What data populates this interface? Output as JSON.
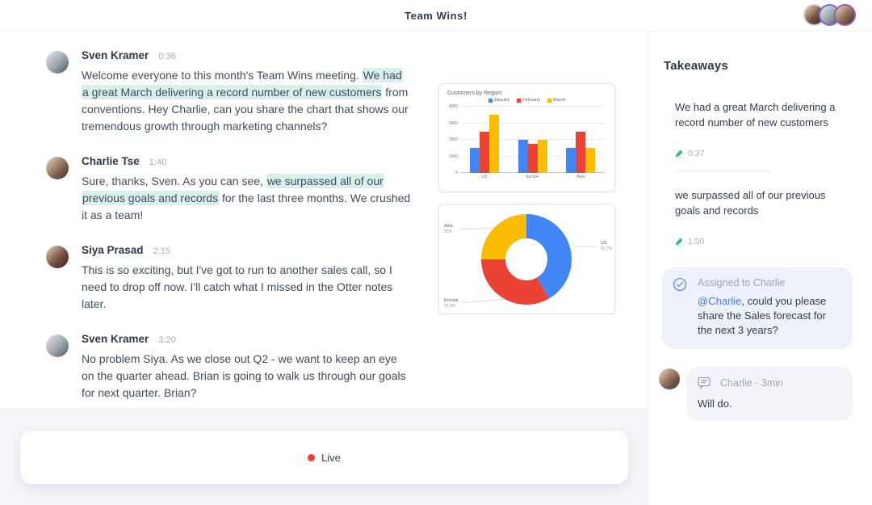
{
  "header": {
    "title": "Team Wins!",
    "participants": [
      "Siya Prasad",
      "Sven Kramer",
      "Charlie Tse"
    ]
  },
  "transcript": {
    "messages": [
      {
        "speaker": "Sven Kramer",
        "time": "0:36",
        "segments": [
          {
            "text": "Welcome everyone to this month's Team Wins meeting. ",
            "highlight": false
          },
          {
            "text": "We had a great March delivering a record number of new customers",
            "highlight": true
          },
          {
            "text": " from conventions. Hey Charlie, can you share the chart that shows our tremendous growth through marketing channels?",
            "highlight": false
          }
        ]
      },
      {
        "speaker": "Charlie Tse",
        "time": "1:40",
        "segments": [
          {
            "text": "Sure, thanks, Sven. As you can see, ",
            "highlight": false
          },
          {
            "text": "we surpassed all of our previous goals and records",
            "highlight": true
          },
          {
            "text": " for the last three months. We crushed it as a team!",
            "highlight": false
          }
        ]
      },
      {
        "speaker": "Siya Prasad",
        "time": "2:15",
        "segments": [
          {
            "text": "This is so exciting, but I've got to run to another sales call, so I need to drop off now. I'll catch what I missed in the Otter notes later.",
            "highlight": false
          }
        ]
      },
      {
        "speaker": "Sven Kramer",
        "time": "3:20",
        "segments": [
          {
            "text": "No problem Siya. As we close out Q2 - we want to keep an eye on the quarter ahead. Brian is going to walk us through our goals for next quarter. Brian?",
            "highlight": false
          }
        ]
      }
    ]
  },
  "chart_data": [
    {
      "type": "bar",
      "title": "Customers by Region",
      "categories": [
        "US",
        "Europe",
        "Asia"
      ],
      "series": [
        {
          "name": "January",
          "color": "#4285F4",
          "values": [
            1500,
            2000,
            1500
          ]
        },
        {
          "name": "February",
          "color": "#EA4335",
          "values": [
            2500,
            1750,
            2500
          ]
        },
        {
          "name": "March",
          "color": "#FBBC04",
          "values": [
            3500,
            2000,
            1500
          ]
        }
      ],
      "ylim": [
        0,
        4000
      ],
      "yticks": [
        0,
        1000,
        2000,
        3000,
        4000
      ],
      "grid": true,
      "legend_position": "top"
    },
    {
      "type": "pie",
      "donut": true,
      "slices": [
        {
          "label": "US",
          "pct": 41.7,
          "pct_label": "41.7%",
          "color": "#4285F4"
        },
        {
          "label": "Europe",
          "pct": 33.3,
          "pct_label": "33.3%",
          "color": "#EA4335"
        },
        {
          "label": "Asia",
          "pct": 25.0,
          "pct_label": "25%",
          "color": "#FBBC04"
        }
      ]
    }
  ],
  "takeaways": {
    "title": "Takeaways",
    "items": [
      {
        "text": "We had a great March delivering a record number of new customers",
        "time": "0:37"
      },
      {
        "text": "we surpassed all of our previous goals and records",
        "time": "1:50"
      }
    ],
    "assignment": {
      "status": "Assigned to Charlie",
      "mention": "@Charlie",
      "text": ", could you please share the Sales forecast for the next 3 years?"
    },
    "reply": {
      "meta": "Charlie · 3min",
      "text": "Will do."
    }
  },
  "footer": {
    "live_label": "Live"
  },
  "colors": {
    "highlight": "#d9efe9",
    "mention_blue": "#4a7dde",
    "live_red": "#ef3e36",
    "pin_green": "#2ebd85",
    "check_blue": "#5b8def"
  }
}
